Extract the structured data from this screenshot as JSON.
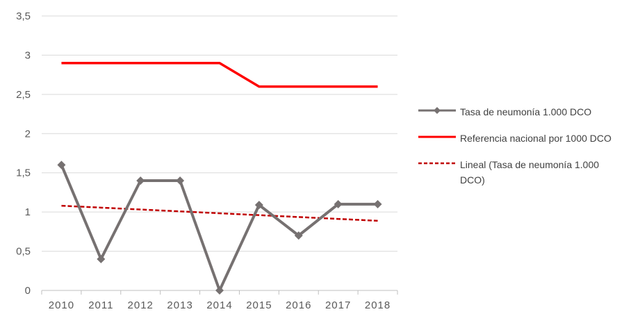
{
  "chart_data": {
    "type": "line",
    "categories": [
      "2010",
      "2011",
      "2012",
      "2013",
      "2014",
      "2015",
      "2016",
      "2017",
      "2018"
    ],
    "y_ticks": [
      "0",
      "0,5",
      "1",
      "1,5",
      "2",
      "2,5",
      "3",
      "3,5"
    ],
    "ylim": [
      0,
      3.5
    ],
    "grid": true,
    "legend_position": "right",
    "series": [
      {
        "name": "Tasa de neumonía 1.000 DCO",
        "values": [
          1.6,
          0.4,
          1.4,
          1.4,
          0.0,
          1.09,
          0.7,
          1.1,
          1.1
        ],
        "color": "#767171",
        "style": "solid",
        "marker": "diamond"
      },
      {
        "name": "Referencia nacional por 1000 DCO",
        "values": [
          2.9,
          2.9,
          2.9,
          2.9,
          2.9,
          2.6,
          2.6,
          2.6,
          2.6
        ],
        "color": "#ff0000",
        "style": "solid",
        "marker": "none"
      },
      {
        "name": "Lineal (Tasa de neumonía 1.000 DCO)",
        "values": [
          1.08,
          1.056,
          1.032,
          1.008,
          0.984,
          0.96,
          0.936,
          0.912,
          0.888
        ],
        "color": "#c00000",
        "style": "dashed",
        "marker": "none"
      }
    ]
  }
}
